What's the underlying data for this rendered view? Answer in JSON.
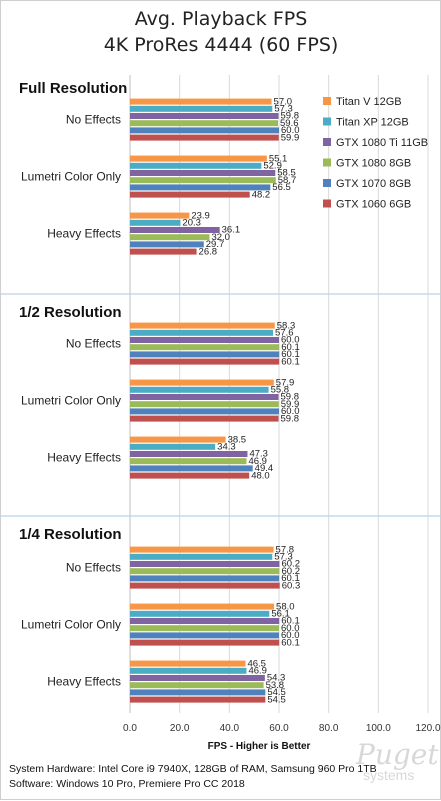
{
  "chart_data": {
    "type": "bar",
    "orientation": "horizontal",
    "title": "Avg. Playback FPS",
    "subtitle": "4K ProRes 4444 (60 FPS)",
    "xlabel": "FPS - Higher is Better",
    "xlim": [
      0,
      120
    ],
    "xticks": [
      "0.0",
      "20.0",
      "40.0",
      "60.0",
      "80.0",
      "100.0",
      "120.0"
    ],
    "grid": true,
    "legend_position": "right",
    "series": [
      {
        "name": "Titan V 12GB",
        "color": "#f79646"
      },
      {
        "name": "Titan XP 12GB",
        "color": "#4bacc6"
      },
      {
        "name": "GTX 1080 Ti 11GB",
        "color": "#8064a2"
      },
      {
        "name": "GTX 1080 8GB",
        "color": "#9bbb59"
      },
      {
        "name": "GTX 1070 8GB",
        "color": "#4f81bd"
      },
      {
        "name": "GTX 1060 6GB",
        "color": "#c0504d"
      }
    ],
    "sections": [
      {
        "title": "Full Resolution",
        "groups": [
          {
            "category": "No Effects",
            "values": [
              57.0,
              57.3,
              59.8,
              59.6,
              60.0,
              59.9
            ]
          },
          {
            "category": "Lumetri Color Only",
            "values": [
              55.1,
              52.9,
              58.5,
              58.7,
              56.5,
              48.2
            ]
          },
          {
            "category": "Heavy Effects",
            "values": [
              23.9,
              20.3,
              36.1,
              32.0,
              29.7,
              26.8
            ]
          }
        ]
      },
      {
        "title": "1/2 Resolution",
        "groups": [
          {
            "category": "No Effects",
            "values": [
              58.3,
              57.6,
              60.0,
              60.1,
              60.1,
              60.1
            ]
          },
          {
            "category": "Lumetri Color Only",
            "values": [
              57.9,
              55.8,
              59.8,
              59.9,
              60.0,
              59.8
            ]
          },
          {
            "category": "Heavy Effects",
            "values": [
              38.5,
              34.3,
              47.3,
              46.9,
              49.4,
              48.0
            ]
          }
        ]
      },
      {
        "title": "1/4 Resolution",
        "groups": [
          {
            "category": "No Effects",
            "values": [
              57.8,
              57.3,
              60.2,
              60.2,
              60.1,
              60.3
            ]
          },
          {
            "category": "Lumetri Color Only",
            "values": [
              58.0,
              56.1,
              60.1,
              60.0,
              60.0,
              60.1
            ]
          },
          {
            "category": "Heavy Effects",
            "values": [
              46.5,
              46.9,
              54.3,
              53.8,
              54.5,
              54.5
            ]
          }
        ]
      }
    ]
  },
  "footer": {
    "line1": "System Hardware: Intel Core i9 7940X, 128GB of RAM, Samsung 960 Pro 1TB",
    "line2": "Software: Windows 10 Pro, Premiere Pro CC 2018"
  },
  "watermark": {
    "logo": "Puget",
    "sub": "systems"
  }
}
